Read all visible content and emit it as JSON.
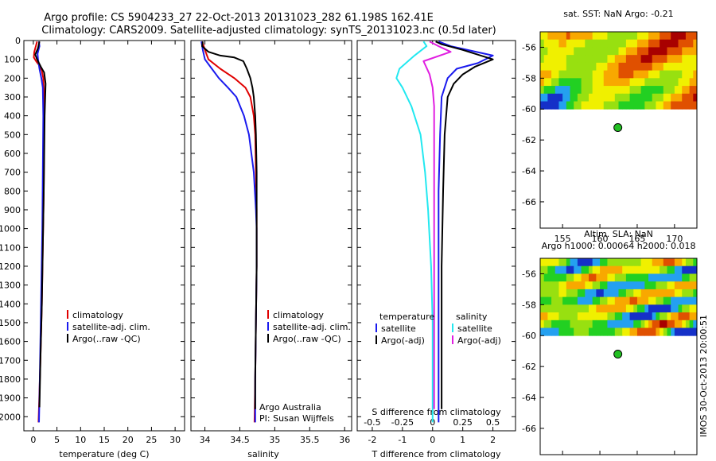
{
  "header": {
    "line1": "Argo profile: CS 5904233_27 22-Oct-2013 20131023_282 61.198S 162.41E",
    "line2": "Climatology: CARS2009. Satellite-adjusted climatology: synTS_20131023.nc (0.5d later)"
  },
  "side_stamp": "IMOS 30-Oct-2013 20:00:51",
  "colors": {
    "climatology": "#e00000",
    "satellite": "#1a1aee",
    "argo": "#000000",
    "cyan": "#22e8f0",
    "magenta": "#e01ee0",
    "marker": "#22c022"
  },
  "chart_data": [
    {
      "type": "line",
      "id": "temperature",
      "xlabel": "temperature (deg C)",
      "ylabel": "",
      "xlim": [
        -2,
        32
      ],
      "ylim": [
        2075,
        0
      ],
      "xticks": [
        0,
        5,
        10,
        15,
        20,
        25,
        30
      ],
      "yticks": [
        0,
        100,
        200,
        300,
        400,
        500,
        600,
        700,
        800,
        900,
        1000,
        1100,
        1200,
        1300,
        1400,
        1500,
        1600,
        1700,
        1800,
        1900,
        2000
      ],
      "legend": [
        "climatology",
        "satellite-adj. clim.",
        "Argo(..raw -QC)"
      ],
      "series": [
        {
          "name": "climatology",
          "color": "climatology",
          "points": [
            [
              0.8,
              5
            ],
            [
              0.2,
              60
            ],
            [
              0.1,
              90
            ],
            [
              0.6,
              110
            ],
            [
              1.2,
              130
            ],
            [
              1.8,
              160
            ],
            [
              2.1,
              200
            ],
            [
              2.3,
              300
            ],
            [
              2.3,
              500
            ],
            [
              2.2,
              800
            ],
            [
              2.0,
              1100
            ],
            [
              1.8,
              1400
            ],
            [
              1.5,
              1700
            ],
            [
              1.2,
              1950
            ],
            [
              1.1,
              2030
            ]
          ]
        },
        {
          "name": "satellite-adj. clim.",
          "color": "satellite",
          "points": [
            [
              1.2,
              5
            ],
            [
              1.3,
              30
            ],
            [
              0.9,
              70
            ],
            [
              1.0,
              100
            ],
            [
              1.3,
              150
            ],
            [
              1.7,
              200
            ],
            [
              2.0,
              250
            ],
            [
              2.1,
              400
            ],
            [
              2.0,
              700
            ],
            [
              1.9,
              1000
            ],
            [
              1.7,
              1300
            ],
            [
              1.5,
              1600
            ],
            [
              1.3,
              1900
            ],
            [
              1.2,
              2030
            ]
          ]
        },
        {
          "name": "Argo(..raw -QC)",
          "color": "argo",
          "points": [
            [
              1.3,
              5
            ],
            [
              1.0,
              40
            ],
            [
              0.4,
              75
            ],
            [
              0.8,
              100
            ],
            [
              1.6,
              140
            ],
            [
              2.3,
              170
            ],
            [
              2.6,
              230
            ],
            [
              2.4,
              400
            ],
            [
              2.2,
              800
            ],
            [
              2.0,
              1100
            ],
            [
              1.8,
              1400
            ],
            [
              1.5,
              1700
            ],
            [
              1.3,
              1950
            ]
          ]
        }
      ]
    },
    {
      "type": "line",
      "id": "salinity",
      "xlabel": "salinity",
      "ylabel": "",
      "xlim": [
        33.8,
        36.1
      ],
      "ylim": [
        2075,
        0
      ],
      "xticks": [
        34,
        34.5,
        35,
        35.5,
        36
      ],
      "legend": [
        "climatology",
        "satellite-adj. clim.",
        "Argo(..raw -QC)"
      ],
      "annotation": [
        "Argo Australia",
        "PI: Susan Wijffels"
      ],
      "series": [
        {
          "name": "climatology",
          "color": "climatology",
          "points": [
            [
              33.96,
              5
            ],
            [
              34.0,
              50
            ],
            [
              34.05,
              100
            ],
            [
              34.22,
              150
            ],
            [
              34.42,
              200
            ],
            [
              34.58,
              250
            ],
            [
              34.65,
              300
            ],
            [
              34.7,
              400
            ],
            [
              34.72,
              500
            ],
            [
              34.73,
              700
            ],
            [
              34.74,
              900
            ],
            [
              34.74,
              1000
            ],
            [
              34.74,
              1200
            ],
            [
              34.73,
              1500
            ],
            [
              34.72,
              1800
            ],
            [
              34.71,
              2030
            ]
          ]
        },
        {
          "name": "satellite-adj. clim.",
          "color": "satellite",
          "points": [
            [
              33.95,
              5
            ],
            [
              33.97,
              50
            ],
            [
              34.0,
              100
            ],
            [
              34.1,
              150
            ],
            [
              34.2,
              200
            ],
            [
              34.33,
              250
            ],
            [
              34.45,
              300
            ],
            [
              34.56,
              400
            ],
            [
              34.63,
              500
            ],
            [
              34.7,
              700
            ],
            [
              34.73,
              900
            ],
            [
              34.74,
              1000
            ],
            [
              34.74,
              1200
            ],
            [
              34.73,
              1500
            ],
            [
              34.72,
              1800
            ],
            [
              34.72,
              2030
            ]
          ]
        },
        {
          "name": "Argo(..raw -QC)",
          "color": "argo",
          "points": [
            [
              33.97,
              5
            ],
            [
              33.96,
              30
            ],
            [
              34.05,
              60
            ],
            [
              34.22,
              80
            ],
            [
              34.42,
              90
            ],
            [
              34.55,
              110
            ],
            [
              34.6,
              150
            ],
            [
              34.65,
              200
            ],
            [
              34.68,
              250
            ],
            [
              34.7,
              300
            ],
            [
              34.72,
              400
            ],
            [
              34.73,
              500
            ],
            [
              34.74,
              700
            ],
            [
              34.74,
              900
            ],
            [
              34.74,
              1000
            ],
            [
              34.74,
              1200
            ],
            [
              34.73,
              1500
            ],
            [
              34.72,
              1800
            ],
            [
              34.72,
              1960
            ]
          ]
        }
      ]
    },
    {
      "type": "line",
      "id": "difference",
      "xlabel": "T difference from climatology",
      "xlabel2": "S difference from climatology",
      "xlim": [
        -2.5,
        2.75
      ],
      "ylim": [
        2075,
        0
      ],
      "xticks": [
        -2,
        -1,
        0,
        1,
        2
      ],
      "xticks2": [
        -0.5,
        -0.25,
        0,
        0.25,
        0.5
      ],
      "xticklabels2": [
        "-0.5",
        "-0.25",
        "0",
        "0.25",
        "0.5"
      ],
      "legend": [
        "temperature",
        "satellite",
        "Argo(-adj)",
        "salinity",
        "satellite",
        "Argo(-adj)"
      ],
      "series": [
        {
          "name": "satellite",
          "group": "temperature",
          "color": "satellite",
          "points": [
            [
              0.2,
              5
            ],
            [
              0.6,
              30
            ],
            [
              2.0,
              80
            ],
            [
              1.5,
              120
            ],
            [
              0.8,
              150
            ],
            [
              0.5,
              200
            ],
            [
              0.3,
              300
            ],
            [
              0.25,
              500
            ],
            [
              0.2,
              800
            ],
            [
              0.2,
              1200
            ],
            [
              0.2,
              1600
            ],
            [
              0.2,
              2030
            ]
          ]
        },
        {
          "name": "Argo(-adj)",
          "group": "temperature",
          "color": "argo",
          "points": [
            [
              0.1,
              5
            ],
            [
              0.3,
              20
            ],
            [
              1.0,
              50
            ],
            [
              2.0,
              100
            ],
            [
              1.4,
              140
            ],
            [
              1.0,
              180
            ],
            [
              0.7,
              230
            ],
            [
              0.5,
              300
            ],
            [
              0.4,
              500
            ],
            [
              0.35,
              800
            ],
            [
              0.3,
              1200
            ],
            [
              0.3,
              1600
            ],
            [
              0.3,
              1960
            ]
          ]
        },
        {
          "name": "satellite",
          "group": "salinity",
          "color": "cyan",
          "points": [
            [
              -0.3,
              5
            ],
            [
              -0.2,
              30
            ],
            [
              -0.6,
              80
            ],
            [
              -1.1,
              150
            ],
            [
              -1.2,
              200
            ],
            [
              -1.0,
              250
            ],
            [
              -0.7,
              350
            ],
            [
              -0.4,
              500
            ],
            [
              -0.25,
              700
            ],
            [
              -0.15,
              900
            ],
            [
              -0.05,
              1200
            ],
            [
              0.0,
              1500
            ],
            [
              0.0,
              2030
            ]
          ]
        },
        {
          "name": "Argo(-adj)",
          "group": "salinity",
          "color": "magenta",
          "points": [
            [
              -0.1,
              5
            ],
            [
              0.2,
              30
            ],
            [
              0.6,
              60
            ],
            [
              -0.3,
              110
            ],
            [
              -0.1,
              180
            ],
            [
              0.0,
              250
            ],
            [
              0.05,
              350
            ],
            [
              0.05,
              500
            ],
            [
              0.05,
              800
            ],
            [
              0.05,
              1200
            ],
            [
              0.05,
              1600
            ],
            [
              0.05,
              1960
            ]
          ]
        }
      ]
    },
    {
      "type": "heatmap",
      "id": "sst-map",
      "title": "sat. SST: NaN Argo: -0.21",
      "xlim": [
        152,
        173
      ],
      "ylim": [
        -67.7,
        -55
      ],
      "xticks": [
        155,
        160,
        165,
        170
      ],
      "yticks": [
        -56,
        -58,
        -60,
        -62,
        -64,
        -66
      ],
      "yticklabels": [
        "-56",
        "-58",
        "-60",
        "-62",
        "-64",
        "-66"
      ],
      "data_extent": [
        152,
        173,
        -60,
        -55
      ],
      "marker": [
        162.41,
        -61.198
      ],
      "palette": [
        "#1530c8",
        "#24a0f0",
        "#22d022",
        "#98e010",
        "#f0f000",
        "#f8a800",
        "#e05000",
        "#a80000"
      ],
      "grid_rows": 10,
      "grid_cols": 42,
      "seed": 7,
      "bias": 0.35
    },
    {
      "type": "heatmap",
      "id": "sla-map",
      "title": "Altim. SLA: NaN",
      "subtitle": "Argo h1000: 0.00064 h2000: 0.018",
      "xlim": [
        152,
        173
      ],
      "ylim": [
        -67.7,
        -55
      ],
      "xticks": [
        155,
        160,
        165,
        170
      ],
      "yticks": [
        -56,
        -58,
        -60,
        -62,
        -64,
        -66
      ],
      "yticklabels": [
        "-56",
        "-58",
        "-60",
        "-62",
        "-64",
        "-66"
      ],
      "data_extent": [
        152,
        173,
        -60,
        -55
      ],
      "marker": [
        162.41,
        -61.198
      ],
      "palette": [
        "#1530c8",
        "#24a0f0",
        "#22d022",
        "#98e010",
        "#f0f000",
        "#f8a800",
        "#e05000",
        "#a80000"
      ],
      "grid_rows": 10,
      "grid_cols": 42,
      "seed": 3,
      "bias": -0.05
    }
  ]
}
